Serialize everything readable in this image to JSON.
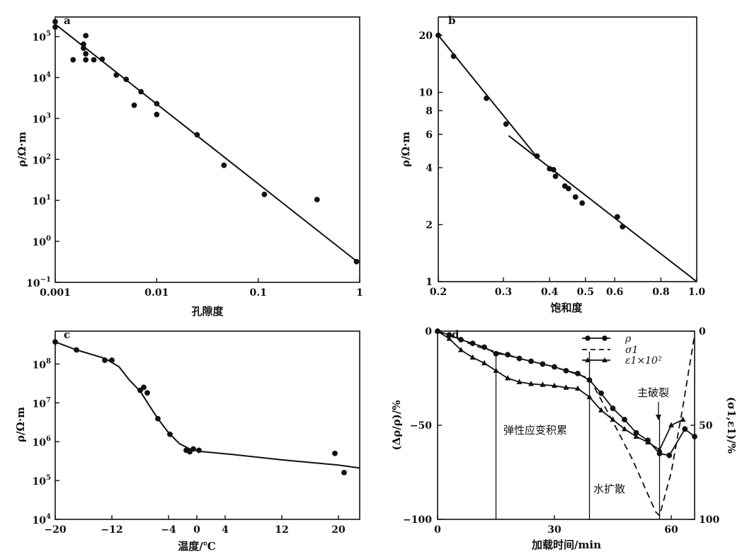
{
  "chart_data": [
    {
      "id": "a",
      "type": "scatter",
      "panel_label": "a",
      "xlabel": "孔隙度",
      "ylabel": "ρ/Ω·m",
      "xscale": "log",
      "yscale": "log",
      "xlim": [
        0.001,
        1
      ],
      "ylim": [
        0.1,
        300000
      ],
      "x_ticks": [
        {
          "v": 0.001,
          "label": "0.001"
        },
        {
          "v": 0.01,
          "label": "0.01"
        },
        {
          "v": 0.1,
          "label": "0.1"
        },
        {
          "v": 1,
          "label": "1"
        }
      ],
      "y_ticks": [
        {
          "v": 0.1,
          "base": "10",
          "exp": "−1"
        },
        {
          "v": 1,
          "base": "10",
          "exp": "0"
        },
        {
          "v": 10,
          "base": "10",
          "exp": "1"
        },
        {
          "v": 100,
          "base": "10",
          "exp": "2"
        },
        {
          "v": 1000,
          "base": "10",
          "exp": "3"
        },
        {
          "v": 10000,
          "base": "10",
          "exp": "4"
        },
        {
          "v": 100000,
          "base": "10",
          "exp": "5"
        }
      ],
      "points": [
        [
          0.001,
          230000
        ],
        [
          0.001,
          170000
        ],
        [
          0.0015,
          27000
        ],
        [
          0.0019,
          65000
        ],
        [
          0.0019,
          52000
        ],
        [
          0.002,
          105000
        ],
        [
          0.002,
          38000
        ],
        [
          0.002,
          27000
        ],
        [
          0.0024,
          27000
        ],
        [
          0.0029,
          28000
        ],
        [
          0.004,
          11500
        ],
        [
          0.005,
          9000
        ],
        [
          0.006,
          2100
        ],
        [
          0.007,
          4500
        ],
        [
          0.01,
          2300
        ],
        [
          0.01,
          1250
        ],
        [
          0.025,
          400
        ],
        [
          0.046,
          72
        ],
        [
          0.115,
          14
        ],
        [
          0.38,
          10.5
        ],
        [
          0.93,
          0.32
        ]
      ],
      "fit_line": [
        [
          0.001,
          200000
        ],
        [
          0.93,
          0.33
        ]
      ]
    },
    {
      "id": "b",
      "type": "scatter",
      "panel_label": "b",
      "xlabel": "饱和度",
      "ylabel": "ρ/Ω·m",
      "xscale": "log",
      "yscale": "log",
      "xlim": [
        0.2,
        1.0
      ],
      "ylim": [
        1,
        25
      ],
      "x_ticks": [
        {
          "v": 0.2,
          "label": "0.2"
        },
        {
          "v": 0.3,
          "label": "0.3"
        },
        {
          "v": 0.4,
          "label": "0.4"
        },
        {
          "v": 0.5,
          "label": "0.5"
        },
        {
          "v": 0.6,
          "label": "0.6"
        },
        {
          "v": 0.8,
          "label": "0.8"
        },
        {
          "v": 1.0,
          "label": "1.0"
        }
      ],
      "y_ticks": [
        {
          "v": 1,
          "label": "1"
        },
        {
          "v": 2,
          "label": "2"
        },
        {
          "v": 4,
          "label": "4"
        },
        {
          "v": 6,
          "label": "6"
        },
        {
          "v": 8,
          "label": "8"
        },
        {
          "v": 10,
          "label": "10"
        },
        {
          "v": 20,
          "label": "20"
        }
      ],
      "points": [
        [
          0.2,
          20
        ],
        [
          0.22,
          15.5
        ],
        [
          0.27,
          9.3
        ],
        [
          0.305,
          6.8
        ],
        [
          0.37,
          4.6
        ],
        [
          0.4,
          3.95
        ],
        [
          0.41,
          3.9
        ],
        [
          0.415,
          3.6
        ],
        [
          0.44,
          3.2
        ],
        [
          0.45,
          3.1
        ],
        [
          0.47,
          2.8
        ],
        [
          0.49,
          2.6
        ],
        [
          0.61,
          2.2
        ],
        [
          0.63,
          1.95
        ]
      ],
      "fit_line_1": [
        [
          0.2,
          20
        ],
        [
          0.37,
          4.55
        ]
      ],
      "fit_line_2": [
        [
          0.31,
          5.9
        ],
        [
          1.0,
          1.0
        ]
      ]
    },
    {
      "id": "c",
      "type": "line",
      "panel_label": "c",
      "xlabel": "温度/℃",
      "ylabel": "ρ/Ω·m",
      "xscale": "linear",
      "yscale": "log",
      "xlim": [
        -20,
        23
      ],
      "ylim": [
        10000,
        700000000
      ],
      "x_ticks": [
        {
          "v": -20,
          "label": "−20"
        },
        {
          "v": -12,
          "label": "−12"
        },
        {
          "v": -4,
          "label": "−4"
        },
        {
          "v": 0,
          "label": "0"
        },
        {
          "v": 4,
          "label": "4"
        },
        {
          "v": 12,
          "label": "12"
        },
        {
          "v": 20,
          "label": "20"
        }
      ],
      "y_ticks": [
        {
          "v": 10000,
          "base": "10",
          "exp": "4"
        },
        {
          "v": 100000,
          "base": "10",
          "exp": "5"
        },
        {
          "v": 1000000,
          "base": "10",
          "exp": "6"
        },
        {
          "v": 10000000,
          "base": "10",
          "exp": "7"
        },
        {
          "v": 100000000,
          "base": "10",
          "exp": "8"
        }
      ],
      "points": [
        [
          -20,
          370000000
        ],
        [
          -17,
          230000000
        ],
        [
          -13,
          125000000
        ],
        [
          -12,
          125000000
        ],
        [
          -8,
          21000000
        ],
        [
          -7.5,
          25000000
        ],
        [
          -7,
          18000000
        ],
        [
          -5.5,
          3900000
        ],
        [
          -3.8,
          1550000
        ],
        [
          -1.5,
          600000
        ],
        [
          -1,
          550000
        ],
        [
          -0.5,
          650000
        ],
        [
          0.3,
          600000
        ],
        [
          19.5,
          500000
        ],
        [
          20.8,
          160000
        ]
      ],
      "curve": [
        [
          -20,
          370000000
        ],
        [
          -17,
          230000000
        ],
        [
          -13,
          140000000
        ],
        [
          -11,
          85000000
        ],
        [
          -9.5,
          38000000
        ],
        [
          -8,
          20000000
        ],
        [
          -6.8,
          9000000
        ],
        [
          -5.5,
          3900000
        ],
        [
          -4,
          1700000
        ],
        [
          -2.5,
          900000
        ],
        [
          -1,
          650000
        ],
        [
          0.5,
          560000
        ],
        [
          5,
          470000
        ],
        [
          12,
          340000
        ],
        [
          20,
          250000
        ],
        [
          23,
          210000
        ]
      ]
    },
    {
      "id": "d",
      "type": "line",
      "panel_label": "d",
      "xlabel": "加载时间/min",
      "ylabel_left": "(Δρ/ρ)/%",
      "ylabel_right": "(σ1,ε1)/%",
      "xscale": "linear",
      "xlim": [
        0,
        66
      ],
      "ylim_left": [
        -100,
        0
      ],
      "ylim_right": [
        0,
        100
      ],
      "x_ticks": [
        {
          "v": 0,
          "label": "0"
        },
        {
          "v": 30,
          "label": "30"
        },
        {
          "v": 60,
          "label": "60"
        }
      ],
      "y_ticks_left": [
        {
          "v": 0,
          "label": "0"
        },
        {
          "v": -50,
          "label": "−50"
        },
        {
          "v": -100,
          "label": "−100"
        }
      ],
      "y_ticks_right": [
        {
          "v": 0,
          "label": "0"
        },
        {
          "v": 50,
          "label": "50"
        },
        {
          "v": 100,
          "label": "100"
        }
      ],
      "legend_position": "top-right",
      "series": [
        {
          "name": "ρ",
          "style": "line-circle",
          "points": [
            [
              0,
              0
            ],
            [
              3,
              -2
            ],
            [
              6,
              -4.5
            ],
            [
              9,
              -6.5
            ],
            [
              12,
              -8.5
            ],
            [
              15,
              -12
            ],
            [
              18,
              -12.5
            ],
            [
              21,
              -14.5
            ],
            [
              24,
              -16
            ],
            [
              27,
              -17.5
            ],
            [
              30,
              -19
            ],
            [
              33,
              -21
            ],
            [
              36,
              -22.5
            ],
            [
              39,
              -26
            ],
            [
              42,
              -33
            ],
            [
              45,
              -41
            ],
            [
              48,
              -47
            ],
            [
              51,
              -54
            ],
            [
              54,
              -58
            ],
            [
              57,
              -65
            ],
            [
              59.5,
              -66
            ],
            [
              63.5,
              -52
            ],
            [
              66,
              -56
            ]
          ]
        },
        {
          "name": "σ1",
          "style": "dashed",
          "points": [
            [
              0,
              0
            ],
            [
              10,
              -8
            ],
            [
              20,
              -14
            ],
            [
              30,
              -19
            ],
            [
              39,
              -25
            ],
            [
              45,
              -48
            ],
            [
              50,
              -68
            ],
            [
              56,
              -96
            ],
            [
              57,
              -98
            ],
            [
              60,
              -75
            ],
            [
              63,
              -40
            ],
            [
              66,
              -2
            ]
          ]
        },
        {
          "name": "ε1×10²",
          "style": "line-triangle",
          "points": [
            [
              0,
              0
            ],
            [
              3,
              -4
            ],
            [
              6,
              -10
            ],
            [
              9,
              -14
            ],
            [
              12,
              -17
            ],
            [
              15,
              -21
            ],
            [
              18,
              -25
            ],
            [
              21,
              -27
            ],
            [
              24,
              -28
            ],
            [
              27,
              -28.5
            ],
            [
              30,
              -29
            ],
            [
              33,
              -30
            ],
            [
              36,
              -30.5
            ],
            [
              39,
              -35
            ],
            [
              42,
              -42
            ],
            [
              45,
              -47
            ],
            [
              48,
              -52
            ],
            [
              51,
              -56
            ],
            [
              54,
              -59
            ],
            [
              57,
              -63
            ],
            [
              60,
              -50
            ],
            [
              63,
              -47
            ]
          ]
        }
      ],
      "vlines": [
        15,
        39,
        57
      ],
      "annotations": {
        "elastic": "弹性应变积累",
        "water": "水扩散",
        "rupture": "主破裂"
      }
    }
  ]
}
